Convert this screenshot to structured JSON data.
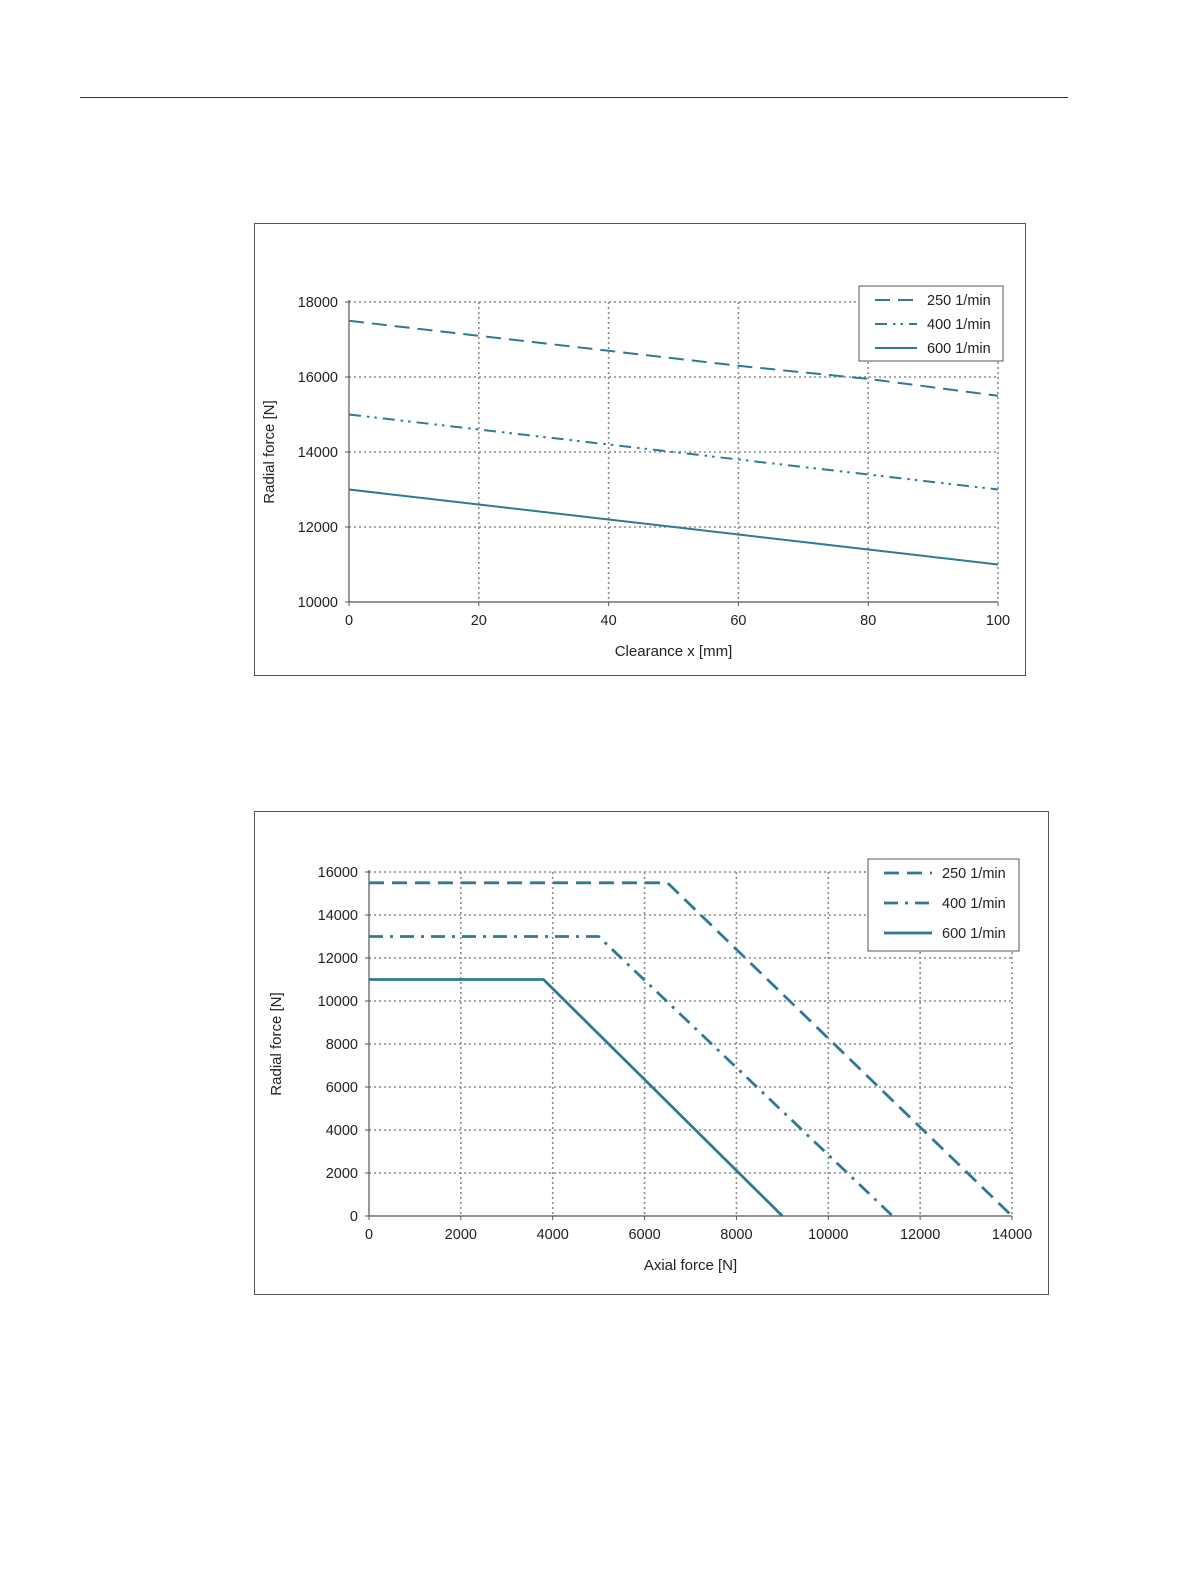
{
  "chart_data": [
    {
      "id": "clearance",
      "type": "line",
      "title": "",
      "xlabel": "Clearance x [mm]",
      "ylabel": "Radial force [N]",
      "xlim": [
        0,
        100
      ],
      "ylim": [
        10000,
        18000
      ],
      "x_ticks": [
        0,
        20,
        40,
        60,
        80,
        100
      ],
      "y_ticks": [
        10000,
        12000,
        14000,
        16000,
        18000
      ],
      "grid": true,
      "legend_position": "top-right",
      "series": [
        {
          "name": "250 1/min",
          "style": "dashed",
          "x": [
            0,
            20,
            40,
            60,
            80,
            100
          ],
          "y": [
            17500,
            17100,
            16700,
            16300,
            15950,
            15500
          ]
        },
        {
          "name": "400 1/min",
          "style": "dash-dot-dot",
          "x": [
            0,
            20,
            40,
            60,
            80,
            100
          ],
          "y": [
            15000,
            14600,
            14200,
            13800,
            13400,
            13000
          ]
        },
        {
          "name": "600 1/min",
          "style": "solid",
          "x": [
            0,
            20,
            40,
            60,
            80,
            100
          ],
          "y": [
            13000,
            12600,
            12200,
            11800,
            11400,
            11000
          ]
        }
      ],
      "color": "#2e7a94"
    },
    {
      "id": "axial",
      "type": "line",
      "title": "",
      "xlabel": "Axial force [N]",
      "ylabel": "Radial force [N]",
      "xlim": [
        0,
        14000
      ],
      "ylim": [
        0,
        16000
      ],
      "x_ticks": [
        0,
        2000,
        4000,
        6000,
        8000,
        10000,
        12000,
        14000
      ],
      "y_ticks": [
        0,
        2000,
        4000,
        6000,
        8000,
        10000,
        12000,
        14000,
        16000
      ],
      "grid": true,
      "legend_position": "top-right",
      "series": [
        {
          "name": "250 1/min",
          "style": "dashed",
          "x": [
            0,
            6500,
            14000
          ],
          "y": [
            15500,
            15500,
            0
          ]
        },
        {
          "name": "400 1/min",
          "style": "dash-dot",
          "x": [
            0,
            5000,
            11400
          ],
          "y": [
            13000,
            13000,
            0
          ]
        },
        {
          "name": "600 1/min",
          "style": "solid",
          "x": [
            0,
            3800,
            9000
          ],
          "y": [
            11000,
            11000,
            0
          ]
        }
      ],
      "color": "#2e7a94"
    }
  ]
}
